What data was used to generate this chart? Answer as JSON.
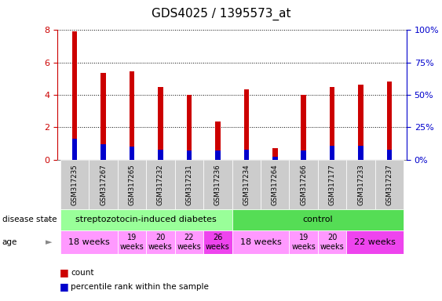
{
  "title": "GDS4025 / 1395573_at",
  "samples": [
    "GSM317235",
    "GSM317267",
    "GSM317265",
    "GSM317232",
    "GSM317231",
    "GSM317236",
    "GSM317234",
    "GSM317264",
    "GSM317266",
    "GSM317177",
    "GSM317233",
    "GSM317237"
  ],
  "count_values": [
    7.9,
    5.35,
    5.45,
    4.5,
    4.0,
    2.35,
    4.35,
    0.7,
    4.0,
    4.5,
    4.65,
    4.8
  ],
  "percentile_values": [
    1.3,
    0.95,
    0.8,
    0.6,
    0.55,
    0.55,
    0.6,
    0.15,
    0.55,
    0.85,
    0.85,
    0.6
  ],
  "bar_color_red": "#CC0000",
  "bar_color_blue": "#0000CC",
  "ylim": [
    0,
    8
  ],
  "y2lim": [
    0,
    100
  ],
  "yticks": [
    0,
    2,
    4,
    6,
    8
  ],
  "y2ticks": [
    0,
    25,
    50,
    75,
    100
  ],
  "y2ticklabels": [
    "0%",
    "25%",
    "50%",
    "75%",
    "100%"
  ],
  "grid_color": "black",
  "disease_state_groups": [
    {
      "label": "streptozotocin-induced diabetes",
      "start": 0,
      "end": 6,
      "color": "#99FF99"
    },
    {
      "label": "control",
      "start": 6,
      "end": 12,
      "color": "#55DD55"
    }
  ],
  "age_groups": [
    {
      "label": "18 weeks",
      "start": 0,
      "end": 2,
      "color": "#FF99FF",
      "fontsize": 8
    },
    {
      "label": "19\nweeks",
      "start": 2,
      "end": 3,
      "color": "#FF99FF",
      "fontsize": 7
    },
    {
      "label": "20\nweeks",
      "start": 3,
      "end": 4,
      "color": "#FF99FF",
      "fontsize": 7
    },
    {
      "label": "22\nweeks",
      "start": 4,
      "end": 5,
      "color": "#FF99FF",
      "fontsize": 7
    },
    {
      "label": "26\nweeks",
      "start": 5,
      "end": 6,
      "color": "#EE44EE",
      "fontsize": 7
    },
    {
      "label": "18 weeks",
      "start": 6,
      "end": 8,
      "color": "#FF99FF",
      "fontsize": 8
    },
    {
      "label": "19\nweeks",
      "start": 8,
      "end": 9,
      "color": "#FF99FF",
      "fontsize": 7
    },
    {
      "label": "20\nweeks",
      "start": 9,
      "end": 10,
      "color": "#FF99FF",
      "fontsize": 7
    },
    {
      "label": "22 weeks",
      "start": 10,
      "end": 12,
      "color": "#EE44EE",
      "fontsize": 8
    }
  ],
  "legend_count_label": "count",
  "legend_percentile_label": "percentile rank within the sample",
  "tick_label_color_left": "#CC0000",
  "tick_label_color_right": "#0000CC",
  "background_color": "#FFFFFF",
  "bar_width": 0.18,
  "sample_box_color": "#CCCCCC",
  "left_label_color": "#555555"
}
